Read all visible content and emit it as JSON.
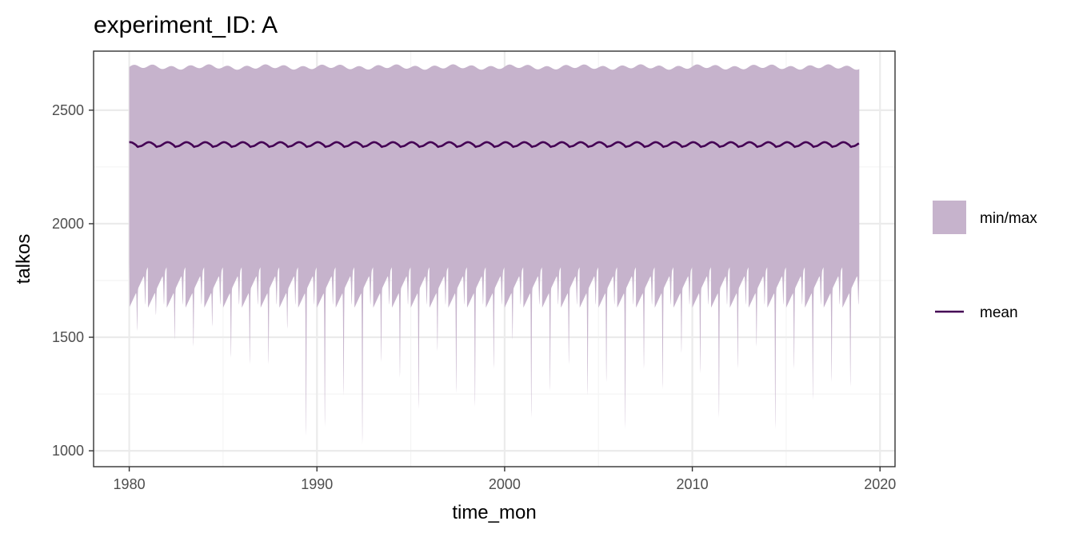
{
  "chart_data": {
    "type": "area",
    "title": "experiment_ID: A",
    "xlabel": "time_mon",
    "ylabel": "talkos",
    "xlim": [
      1978.1,
      2020.8
    ],
    "ylim": [
      930,
      2760
    ],
    "x_ticks": [
      1980,
      1990,
      2000,
      2010,
      2020
    ],
    "x_tick_labels": [
      "1980",
      "1990",
      "2000",
      "2010",
      "2020"
    ],
    "y_ticks": [
      1000,
      1500,
      2000,
      2500
    ],
    "y_tick_labels": [
      "1000",
      "1500",
      "2000",
      "2500"
    ],
    "x_range": [
      1980.0,
      2018.9
    ],
    "grid": true,
    "legend_position": "right",
    "colors": {
      "band": "#c6b3cc",
      "mean": "#440154",
      "grid_major": "#ebebeb",
      "grid_minor": "#f4f4f4",
      "panel_border": "#333333",
      "tick_text": "#4d4d4d"
    },
    "series": [
      {
        "name": "min/max",
        "kind": "ribbon",
        "max_level": 2690,
        "max_amplitude": 8,
        "min_typical": 1650,
        "annual_min_dips": [
          {
            "year": 1980,
            "value": 1470
          },
          {
            "year": 1981,
            "value": 1540
          },
          {
            "year": 1982,
            "value": 1430
          },
          {
            "year": 1983,
            "value": 1400
          },
          {
            "year": 1984,
            "value": 1490
          },
          {
            "year": 1985,
            "value": 1350
          },
          {
            "year": 1986,
            "value": 1320
          },
          {
            "year": 1987,
            "value": 1320
          },
          {
            "year": 1988,
            "value": 1480
          },
          {
            "year": 1989,
            "value": 1000
          },
          {
            "year": 1990,
            "value": 1040
          },
          {
            "year": 1991,
            "value": 1180
          },
          {
            "year": 1992,
            "value": 960
          },
          {
            "year": 1993,
            "value": 1330
          },
          {
            "year": 1994,
            "value": 1260
          },
          {
            "year": 1995,
            "value": 1120
          },
          {
            "year": 1996,
            "value": 1380
          },
          {
            "year": 1997,
            "value": 1190
          },
          {
            "year": 1998,
            "value": 1130
          },
          {
            "year": 1999,
            "value": 1300
          },
          {
            "year": 2000,
            "value": 1430
          },
          {
            "year": 2001,
            "value": 1080
          },
          {
            "year": 2002,
            "value": 1200
          },
          {
            "year": 2003,
            "value": 1320
          },
          {
            "year": 2004,
            "value": 1180
          },
          {
            "year": 2005,
            "value": 1240
          },
          {
            "year": 2006,
            "value": 1030
          },
          {
            "year": 2007,
            "value": 1300
          },
          {
            "year": 2008,
            "value": 1210
          },
          {
            "year": 2009,
            "value": 1370
          },
          {
            "year": 2010,
            "value": 1280
          },
          {
            "year": 2011,
            "value": 1080
          },
          {
            "year": 2012,
            "value": 1300
          },
          {
            "year": 2013,
            "value": 1400
          },
          {
            "year": 2014,
            "value": 1030
          },
          {
            "year": 2015,
            "value": 1300
          },
          {
            "year": 2016,
            "value": 1160
          },
          {
            "year": 2017,
            "value": 1240
          },
          {
            "year": 2018,
            "value": 1220
          },
          {
            "year": 2019,
            "value": 1120
          }
        ]
      },
      {
        "name": "mean",
        "kind": "line",
        "level": 2350,
        "seasonal_amplitude": 9
      }
    ]
  }
}
